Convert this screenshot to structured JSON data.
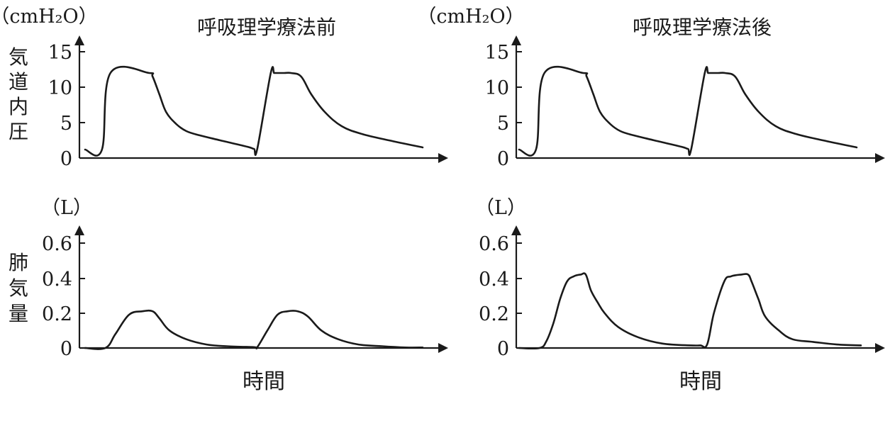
{
  "chart_data": [
    {
      "id": "pressure_before",
      "type": "line",
      "title": "呼吸理学療法前",
      "unit": "（cmH₂O）",
      "ylabel": "気道内圧",
      "xlabel": "",
      "yticks": [
        "15",
        "10",
        "5",
        "0"
      ],
      "ylim": [
        0,
        15
      ],
      "xlim": [
        0,
        100
      ],
      "grid": false,
      "series": [
        {
          "x": [
            0,
            5,
            7.5,
            19,
            20,
            22,
            24,
            27,
            30,
            34,
            40,
            48,
            50,
            51,
            55,
            56,
            57,
            59,
            61,
            64,
            67,
            71,
            76,
            82,
            90,
            100
          ],
          "y": [
            1.2,
            1.2,
            12,
            12,
            11.5,
            9,
            6.5,
            4.8,
            3.8,
            3.2,
            2.5,
            1.6,
            1.3,
            1.3,
            12,
            12,
            12,
            12,
            12,
            11.5,
            9,
            6.5,
            4.5,
            3.4,
            2.5,
            1.5
          ]
        }
      ]
    },
    {
      "id": "pressure_after",
      "type": "line",
      "title": "呼吸理学療法後",
      "unit": "（cmH₂O）",
      "ylabel": "",
      "xlabel": "",
      "yticks": [
        "15",
        "10",
        "5",
        "0"
      ],
      "ylim": [
        0,
        15
      ],
      "xlim": [
        0,
        100
      ],
      "grid": false,
      "series": [
        {
          "x": [
            0,
            5,
            7.5,
            19,
            20,
            22,
            24,
            27,
            30,
            34,
            40,
            48,
            50,
            51,
            55,
            56,
            57,
            59,
            61,
            64,
            67,
            71,
            76,
            82,
            90,
            100
          ],
          "y": [
            1.2,
            1.2,
            12,
            12,
            11.5,
            9,
            6.5,
            4.8,
            3.8,
            3.2,
            2.5,
            1.6,
            1.3,
            1.3,
            12,
            12,
            12,
            12,
            12,
            11.5,
            9,
            6.5,
            4.5,
            3.4,
            2.5,
            1.5
          ]
        }
      ]
    },
    {
      "id": "volume_before",
      "type": "line",
      "title": "",
      "unit": "（L）",
      "ylabel": "肺気量",
      "xlabel": "時間",
      "yticks": [
        "0.6",
        "0.4",
        "0.2",
        "0"
      ],
      "ylim": [
        0,
        0.6
      ],
      "xlim": [
        0,
        100
      ],
      "grid": false,
      "series": [
        {
          "x": [
            0,
            6,
            9,
            13,
            17,
            20,
            22,
            25,
            30,
            36,
            42,
            50,
            51,
            54,
            57,
            60,
            63,
            66,
            70,
            75,
            81,
            88,
            95,
            100
          ],
          "y": [
            0,
            0,
            0.08,
            0.19,
            0.21,
            0.21,
            0.17,
            0.1,
            0.05,
            0.02,
            0.01,
            0.005,
            0.005,
            0.1,
            0.19,
            0.21,
            0.21,
            0.18,
            0.1,
            0.05,
            0.02,
            0.01,
            0.003,
            0.003
          ]
        }
      ]
    },
    {
      "id": "volume_after",
      "type": "line",
      "title": "",
      "unit": "（L）",
      "ylabel": "",
      "xlabel": "時間",
      "yticks": [
        "0.6",
        "0.4",
        "0.2",
        "0"
      ],
      "ylim": [
        0,
        0.6
      ],
      "xlim": [
        0,
        100
      ],
      "grid": false,
      "series": [
        {
          "x": [
            0,
            6,
            8,
            10,
            12,
            14,
            16,
            18,
            19.5,
            21,
            23,
            25,
            29,
            35,
            42,
            50,
            53,
            55,
            57,
            60,
            62,
            65,
            67,
            68,
            70,
            72,
            76,
            80,
            86,
            93,
            100
          ],
          "y": [
            0,
            0,
            0.04,
            0.14,
            0.28,
            0.38,
            0.41,
            0.42,
            0.42,
            0.33,
            0.26,
            0.2,
            0.12,
            0.06,
            0.025,
            0.015,
            0.015,
            0.02,
            0.2,
            0.38,
            0.41,
            0.42,
            0.42,
            0.38,
            0.28,
            0.18,
            0.1,
            0.05,
            0.035,
            0.02,
            0.015
          ]
        }
      ]
    }
  ]
}
